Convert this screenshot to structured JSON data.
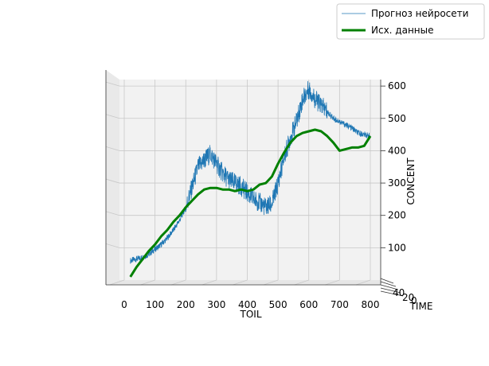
{
  "chart_data": {
    "type": "line",
    "projection": "3d",
    "xlabel": "TOIL",
    "ylabel": "TIME",
    "zlabel": "CONCENT",
    "xlim": [
      -30,
      830
    ],
    "zlim": [
      0,
      620
    ],
    "x_ticks": [
      "0",
      "100",
      "200",
      "300",
      "400",
      "500",
      "600",
      "700",
      "800"
    ],
    "z_ticks": [
      "100",
      "200",
      "300",
      "400",
      "500",
      "600"
    ],
    "y_ticks_visible": [
      "40",
      "20",
      "0"
    ],
    "legend_position": "top-right",
    "series": [
      {
        "name": "Прогноз нейросети",
        "color": "#1f77b4",
        "linewidth": 0.8,
        "x": [
          20,
          40,
          60,
          80,
          100,
          120,
          140,
          160,
          180,
          200,
          220,
          240,
          260,
          280,
          300,
          320,
          340,
          360,
          380,
          400,
          420,
          440,
          460,
          480,
          500,
          520,
          540,
          560,
          580,
          600,
          620,
          640,
          660,
          680,
          700,
          720,
          740,
          760,
          780,
          800
        ],
        "z": [
          60,
          65,
          70,
          80,
          95,
          110,
          130,
          155,
          185,
          225,
          285,
          350,
          370,
          390,
          360,
          330,
          310,
          300,
          290,
          270,
          250,
          240,
          225,
          235,
          300,
          380,
          440,
          490,
          560,
          590,
          560,
          540,
          520,
          500,
          490,
          480,
          470,
          455,
          450,
          445
        ]
      },
      {
        "name": "Исх. данные",
        "color": "#008000",
        "linewidth": 3,
        "x": [
          20,
          40,
          60,
          80,
          100,
          120,
          140,
          160,
          180,
          200,
          220,
          240,
          260,
          280,
          300,
          320,
          340,
          360,
          380,
          400,
          420,
          440,
          460,
          480,
          500,
          520,
          540,
          560,
          580,
          600,
          620,
          640,
          660,
          680,
          700,
          720,
          740,
          760,
          780,
          800
        ],
        "z": [
          10,
          40,
          65,
          90,
          110,
          135,
          155,
          180,
          200,
          225,
          245,
          265,
          280,
          285,
          285,
          280,
          280,
          275,
          280,
          275,
          280,
          295,
          300,
          320,
          360,
          395,
          425,
          445,
          455,
          460,
          465,
          460,
          445,
          425,
          400,
          405,
          410,
          410,
          415,
          445
        ]
      }
    ]
  }
}
